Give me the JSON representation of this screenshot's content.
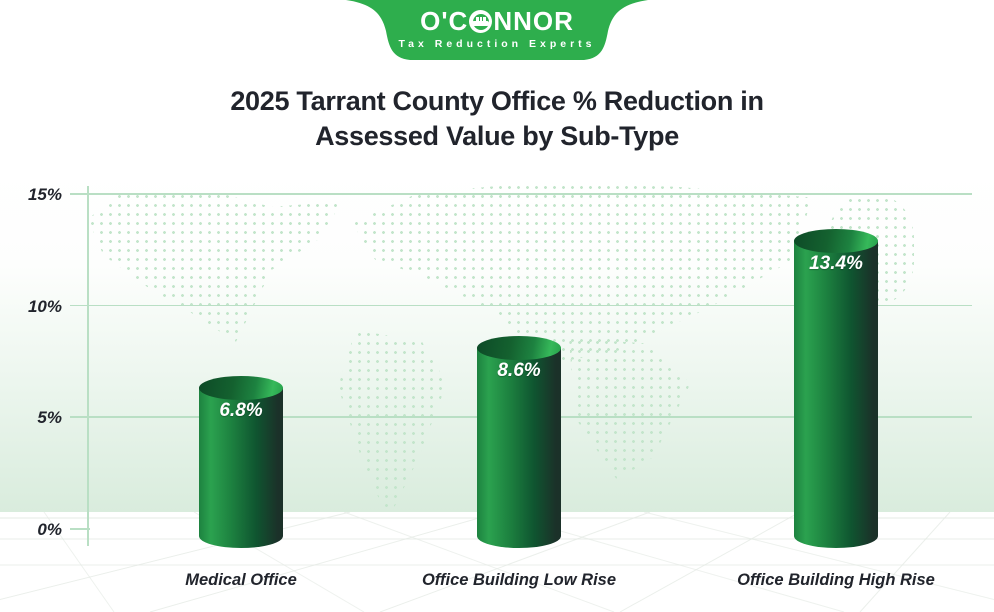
{
  "brand": {
    "name": "O'CONNOR",
    "name_pre": "O'C",
    "name_post": "NNOR",
    "tagline": "Tax Reduction Experts"
  },
  "title": {
    "line1": "2025 Tarrant County Office % Reduction in",
    "line2": "Assessed Value by Sub-Type"
  },
  "chart_data": {
    "type": "bar",
    "title": "2025 Tarrant County Office % Reduction in Assessed Value by Sub-Type",
    "categories": [
      "Medical Office",
      "Office Building Low Rise",
      "Office Building High Rise"
    ],
    "values": [
      6.8,
      8.6,
      13.4
    ],
    "value_labels": [
      "6.8%",
      "8.6%",
      "13.4%"
    ],
    "xlabel": "",
    "ylabel": "",
    "ylim": [
      0,
      15
    ],
    "yticks": [
      {
        "value": 15,
        "label": "15%"
      },
      {
        "value": 10,
        "label": "10%"
      },
      {
        "value": 5,
        "label": "5%"
      },
      {
        "value": 0,
        "label": "0%"
      }
    ],
    "grid": true,
    "legend": null,
    "bar_style": "3d-cylinder",
    "background": "dotted world map over white-to-green gradient",
    "colors": {
      "badge_green": "#2eae4d",
      "text_dark": "#21242c",
      "value_text": "#ffffff",
      "grid_line": "#b9dfc4",
      "backdrop_green": "#d9ecdd",
      "dots": "#c3e5cb",
      "floor_line": "#e3e9e3",
      "bar_light": "#2ba24f",
      "bar_main": "#1d8240",
      "bar_deep": "#0f5530",
      "bar_dark": "#1b3129",
      "bar_top_dark": "#0d4a27",
      "bar_top_bright": "#36b95a"
    }
  }
}
